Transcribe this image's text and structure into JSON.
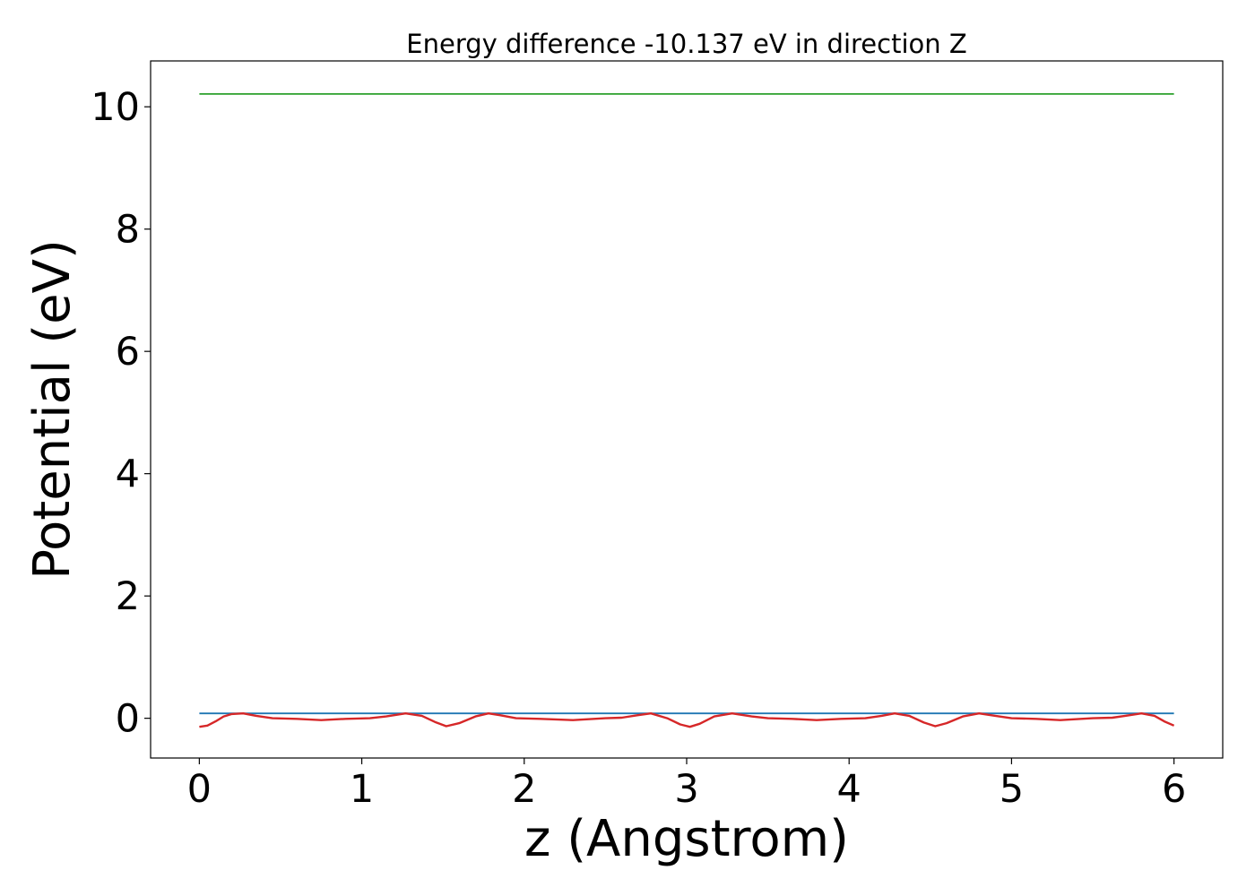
{
  "chart_data": {
    "type": "line",
    "title": "Energy difference -10.137 eV in direction Z",
    "xlabel": "z (Angstrom)",
    "ylabel": "Potential (eV)",
    "xlim": [
      -0.3,
      6.3
    ],
    "ylim": [
      -0.65,
      10.75
    ],
    "xticks": [
      0,
      1,
      2,
      3,
      4,
      5,
      6
    ],
    "yticks": [
      0,
      2,
      4,
      6,
      8,
      10
    ],
    "grid": false,
    "legend": "none",
    "series": [
      {
        "color": "#2ca02c",
        "x": [
          0,
          6
        ],
        "y": [
          10.21,
          10.21
        ]
      },
      {
        "color": "#1f77b4",
        "x": [
          0,
          6
        ],
        "y": [
          0.08,
          0.08
        ]
      },
      {
        "color": "#d62728",
        "x": [
          0,
          0.05,
          0.1,
          0.15,
          0.2,
          0.27,
          0.35,
          0.45,
          0.6,
          0.75,
          0.9,
          1.05,
          1.15,
          1.27,
          1.37,
          1.45,
          1.52,
          1.6,
          1.7,
          1.78,
          1.85,
          1.95,
          2.1,
          2.3,
          2.5,
          2.6,
          2.7,
          2.78,
          2.88,
          2.96,
          3.02,
          3.08,
          3.17,
          3.28,
          3.4,
          3.5,
          3.65,
          3.8,
          3.95,
          4.1,
          4.2,
          4.28,
          4.37,
          4.46,
          4.53,
          4.6,
          4.7,
          4.8,
          4.9,
          5.0,
          5.15,
          5.3,
          5.5,
          5.62,
          5.7,
          5.8,
          5.88,
          5.94,
          6.0
        ],
        "y": [
          -0.14,
          -0.12,
          -0.05,
          0.03,
          0.07,
          0.08,
          0.04,
          0.0,
          -0.01,
          -0.03,
          -0.01,
          0.0,
          0.03,
          0.08,
          0.04,
          -0.06,
          -0.13,
          -0.08,
          0.03,
          0.08,
          0.05,
          0.0,
          -0.01,
          -0.03,
          0.0,
          0.01,
          0.05,
          0.08,
          0.0,
          -0.1,
          -0.14,
          -0.09,
          0.03,
          0.08,
          0.03,
          0.0,
          -0.01,
          -0.03,
          -0.01,
          0.0,
          0.04,
          0.08,
          0.04,
          -0.07,
          -0.13,
          -0.08,
          0.03,
          0.08,
          0.04,
          0.0,
          -0.01,
          -0.03,
          0.0,
          0.01,
          0.04,
          0.08,
          0.04,
          -0.05,
          -0.12
        ]
      }
    ]
  }
}
